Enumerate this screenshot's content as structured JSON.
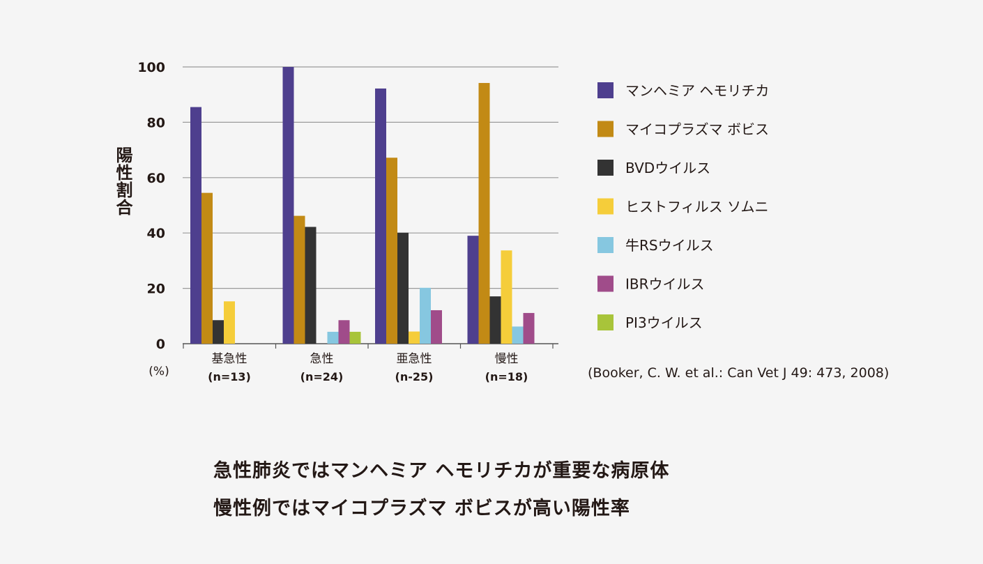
{
  "chart_data": {
    "type": "bar",
    "ylabel": "陽性割合",
    "y_unit": "(%)",
    "ylim": [
      0,
      100
    ],
    "yticks": [
      0,
      20,
      40,
      60,
      80,
      100
    ],
    "grid": true,
    "legend_position": "right",
    "categories": [
      "基急性",
      "急性",
      "亜急性",
      "慢性"
    ],
    "category_counts": [
      "(n=13)",
      "(n=24)",
      "(n-25)",
      "(n=18)"
    ],
    "series": [
      {
        "name": "マンヘミア ヘモリチカ",
        "color": "#4e3f8e",
        "values": [
          85.5,
          100,
          92.2,
          39
        ]
      },
      {
        "name": "マイコプラズマ ボビス",
        "color": "#c28a15",
        "values": [
          54.5,
          46.2,
          67.2,
          94.2
        ]
      },
      {
        "name": "BVDウイルス",
        "color": "#333333",
        "values": [
          8.5,
          42.2,
          40.1,
          17.1
        ]
      },
      {
        "name": "ヒストフィルス ソムニ",
        "color": "#f5cd3a",
        "values": [
          15.3,
          0,
          4.4,
          33.7
        ]
      },
      {
        "name": "牛RSウイルス",
        "color": "#86c7e0",
        "values": [
          0,
          4.3,
          20.2,
          6.2
        ]
      },
      {
        "name": "IBRウイルス",
        "color": "#a04c8a",
        "values": [
          0,
          8.5,
          12.1,
          11.1
        ]
      },
      {
        "name": "PI3ウイルス",
        "color": "#a8c43a",
        "values": [
          0,
          4.3,
          0,
          0
        ]
      }
    ]
  },
  "source": "(Booker, C. W. et al.: Can Vet J 49: 473, 2008)",
  "captions": [
    "急性肺炎ではマンヘミア ヘモリチカが重要な病原体",
    "慢性例ではマイコプラズマ ボビスが高い陽性率"
  ],
  "colors": {
    "background": "#f5f5f5",
    "grid": "#9a9a9a",
    "text": "#231815"
  }
}
